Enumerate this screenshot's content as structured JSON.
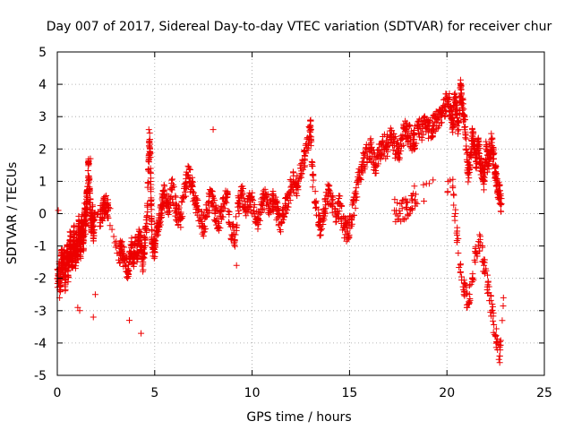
{
  "chart_data": {
    "type": "scatter",
    "title": "Day 007 of 2017, Sidereal Day-to-day VTEC variation (SDTVAR) for receiver chur",
    "xlabel": "GPS time / hours",
    "ylabel": "SDTVAR / TECUs",
    "xlim": [
      0,
      25
    ],
    "ylim": [
      -5,
      5
    ],
    "x_ticks": [
      0,
      5,
      10,
      15,
      20,
      25
    ],
    "y_ticks": [
      -5,
      -4,
      -3,
      -2,
      -1,
      0,
      1,
      2,
      3,
      4,
      5
    ],
    "x_tick_labels": [
      "0",
      "5",
      "10",
      "15",
      "20",
      "25"
    ],
    "y_tick_labels": [
      "-5",
      "-4",
      "-3",
      "-2",
      "-1",
      "0",
      "1",
      "2",
      "3",
      "4",
      "5"
    ],
    "grid": true,
    "marker": "+",
    "series_color": "#ee0000",
    "series": [
      {
        "name": "SDTVAR",
        "x": [
          0.0,
          0.1,
          0.15,
          0.2,
          0.25,
          0.3,
          0.35,
          0.4,
          0.45,
          0.5,
          0.55,
          0.6,
          0.65,
          0.7,
          0.75,
          0.8,
          0.85,
          0.9,
          0.95,
          1.0,
          1.05,
          1.1,
          1.15,
          1.2,
          1.25,
          1.3,
          1.35,
          1.4,
          1.45,
          1.5,
          1.55,
          1.6,
          1.65,
          1.7,
          1.75,
          1.8,
          1.85,
          1.9,
          2.3,
          2.4,
          2.5,
          2.6,
          3.2,
          3.3,
          3.4,
          3.6,
          3.7,
          3.8,
          3.9,
          4.0,
          4.1,
          4.2,
          4.3,
          4.4,
          4.5,
          4.6,
          4.7,
          4.75,
          4.8,
          4.85,
          4.9,
          5.0,
          5.1,
          5.2,
          5.3,
          5.4,
          5.5,
          5.7,
          5.9,
          6.1,
          6.3,
          6.5,
          6.7,
          6.9,
          7.1,
          7.3,
          7.5,
          7.7,
          7.9,
          8.1,
          8.3,
          8.5,
          8.7,
          8.9,
          9.1,
          9.3,
          9.5,
          9.7,
          9.9,
          10.1,
          10.3,
          10.5,
          10.7,
          10.9,
          11.1,
          11.3,
          11.5,
          11.7,
          11.9,
          12.1,
          12.3,
          12.5,
          12.7,
          12.9,
          13.0,
          13.1,
          13.3,
          13.5,
          13.7,
          13.9,
          14.1,
          14.3,
          14.5,
          14.7,
          14.9,
          15.1,
          15.3,
          15.5,
          15.7,
          15.9,
          16.1,
          16.3,
          16.5,
          16.7,
          16.9,
          17.1,
          17.3,
          17.5,
          17.7,
          17.9,
          18.1,
          18.3,
          18.5,
          18.7,
          18.9,
          19.1,
          19.3,
          19.5,
          19.7,
          19.9,
          20.1,
          20.2,
          20.3,
          20.4,
          20.5,
          20.6,
          20.7,
          20.8,
          20.9,
          21.0,
          21.1,
          21.2,
          21.3,
          21.4,
          21.5,
          21.6,
          21.7,
          21.8,
          21.9,
          22.0,
          22.1,
          22.2,
          22.3,
          22.4,
          22.5,
          22.6,
          22.7,
          22.8
        ],
        "y": [
          -2.0,
          -1.8,
          -2.4,
          -1.5,
          -1.3,
          -1.7,
          -1.2,
          -2.2,
          -1.6,
          -1.0,
          -1.9,
          -1.4,
          -0.8,
          -1.1,
          -1.6,
          -1.3,
          -0.6,
          -1.0,
          -1.5,
          -0.9,
          -1.2,
          -0.4,
          -0.7,
          -1.1,
          -0.2,
          -0.5,
          -0.9,
          0.1,
          -0.3,
          0.3,
          0.5,
          1.6,
          0.7,
          0.2,
          -0.4,
          0.1,
          -0.6,
          -0.2,
          0.0,
          0.2,
          0.3,
          0.1,
          -1.2,
          -1.1,
          -1.3,
          -1.8,
          -1.5,
          -1.0,
          -1.4,
          -0.9,
          -1.2,
          -0.7,
          -1.0,
          -1.5,
          -0.8,
          -0.3,
          1.8,
          2.3,
          0.9,
          -0.5,
          -1.2,
          -1.0,
          -0.6,
          -0.2,
          0.0,
          0.4,
          0.6,
          0.2,
          0.8,
          0.1,
          -0.2,
          0.5,
          1.2,
          0.9,
          0.3,
          -0.1,
          -0.4,
          0.1,
          0.6,
          0.0,
          -0.3,
          0.2,
          0.5,
          -0.4,
          -0.8,
          0.3,
          0.6,
          0.1,
          0.4,
          0.2,
          -0.2,
          0.3,
          0.5,
          0.1,
          0.4,
          0.0,
          -0.3,
          0.2,
          0.6,
          1.0,
          0.8,
          1.4,
          1.8,
          2.3,
          2.7,
          1.2,
          0.2,
          -0.5,
          0.1,
          0.6,
          0.4,
          -0.1,
          0.3,
          -0.4,
          -0.6,
          -0.2,
          0.5,
          1.2,
          1.6,
          1.9,
          2.0,
          1.5,
          1.8,
          2.2,
          2.0,
          2.4,
          2.1,
          1.9,
          2.3,
          2.6,
          2.4,
          2.2,
          2.7,
          2.5,
          2.8,
          2.6,
          2.7,
          2.9,
          3.1,
          3.3,
          3.6,
          3.0,
          2.8,
          3.5,
          3.2,
          2.6,
          3.9,
          3.4,
          2.9,
          2.0,
          1.2,
          1.8,
          2.4,
          2.0,
          1.6,
          2.3,
          1.7,
          1.3,
          1.0,
          2.0,
          1.5,
          1.9,
          2.2,
          1.7,
          1.2,
          0.9,
          0.6,
          0.3
        ],
        "low_branch_x": [
          17.3,
          17.6,
          17.9,
          18.2,
          18.4,
          20.3,
          20.5,
          20.7,
          20.9,
          21.1,
          21.3,
          21.5,
          21.7,
          21.9,
          22.1,
          22.3,
          22.5,
          22.7,
          22.9
        ],
        "low_branch_y": [
          0.1,
          0.0,
          0.2,
          0.4,
          0.6,
          0.8,
          -0.6,
          -1.8,
          -2.4,
          -2.8,
          -2.0,
          -1.2,
          -0.8,
          -1.6,
          -2.2,
          -3.0,
          -3.8,
          -4.4,
          -2.6
        ],
        "outliers_x": [
          0.05,
          0.12,
          1.05,
          1.15,
          1.7,
          1.85,
          1.95,
          3.7,
          4.3,
          4.7,
          8.0,
          9.2
        ],
        "outliers_y": [
          0.1,
          -2.6,
          -2.9,
          -3.0,
          1.7,
          -3.2,
          -2.5,
          -3.3,
          -3.7,
          2.6,
          2.6,
          -1.6
        ]
      }
    ]
  }
}
